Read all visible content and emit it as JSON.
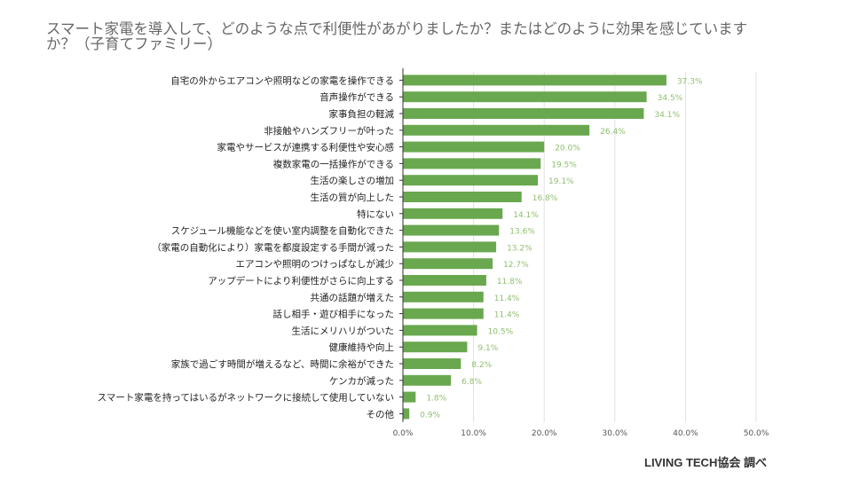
{
  "chart_data": {
    "type": "bar",
    "orientation": "horizontal",
    "title": "スマート家電を導入して、どのような点で利便性があがりましたか？またはどのように効果を感じていますか？（子育てファミリー）",
    "categories": [
      "自宅の外からエアコンや照明などの家電を操作できる",
      "音声操作ができる",
      "家事負担の軽減",
      "非接触やハンズフリーが叶った",
      "家電やサービスが連携する利便性や安心感",
      "複数家電の一括操作ができる",
      "生活の楽しさの増加",
      "生活の質が向上した",
      "特にない",
      "スケジュール機能などを使い室内調整を自動化できた",
      "（家電の自動化により）家電を都度設定する手間が減った",
      "エアコンや照明のつけっぱなしが減少",
      "アップデートにより利便性がさらに向上する",
      "共通の話題が増えた",
      "話し相手・遊び相手になった",
      "生活にメリハリがついた",
      "健康維持や向上",
      "家族で過ごす時間が増えるなど、時間に余裕ができた",
      "ケンカが減った",
      "スマート家電を持ってはいるがネットワークに接続して使用していない",
      "その他"
    ],
    "values": [
      37.3,
      34.5,
      34.1,
      26.4,
      20.0,
      19.5,
      19.1,
      16.8,
      14.1,
      13.6,
      13.2,
      12.7,
      11.8,
      11.4,
      11.4,
      10.5,
      9.1,
      8.2,
      6.8,
      1.8,
      0.9
    ],
    "value_labels": [
      "37.3%",
      "34.5%",
      "34.1%",
      "26.4%",
      "20.0%",
      "19.5%",
      "19.1%",
      "16.8%",
      "14.1%",
      "13.6%",
      "13.2%",
      "12.7%",
      "11.8%",
      "11.4%",
      "11.4%",
      "10.5%",
      "9.1%",
      "8.2%",
      "6.8%",
      "1.8%",
      "0.9%"
    ],
    "xlim": [
      0,
      50
    ],
    "xticks": [
      "0.0%",
      "10.0%",
      "20.0%",
      "30.0%",
      "40.0%",
      "50.0%"
    ],
    "grid": true,
    "bar_color": "#6aa84f",
    "label_color": "#8fbf6f"
  },
  "footer": "LIVING TECH協会 調べ"
}
